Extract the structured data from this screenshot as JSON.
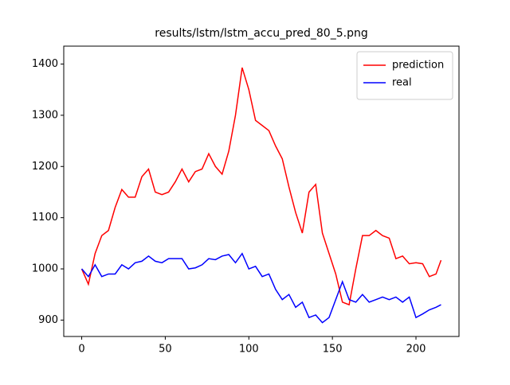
{
  "chart_data": {
    "type": "line",
    "title": "results/lstm/lstm_accu_pred_80_5.png",
    "x": [
      0,
      4,
      8,
      12,
      16,
      20,
      24,
      28,
      32,
      36,
      40,
      44,
      48,
      52,
      56,
      60,
      64,
      68,
      72,
      76,
      80,
      84,
      88,
      92,
      96,
      100,
      104,
      108,
      112,
      116,
      120,
      124,
      128,
      132,
      136,
      140,
      144,
      148,
      152,
      156,
      160,
      164,
      168,
      172,
      176,
      180,
      184,
      188,
      192,
      196,
      200,
      204,
      208,
      212,
      215
    ],
    "series": [
      {
        "name": "prediction",
        "color": "#ff0000",
        "values": [
          1000,
          970,
          1030,
          1065,
          1075,
          1120,
          1155,
          1140,
          1140,
          1180,
          1195,
          1150,
          1145,
          1150,
          1170,
          1195,
          1170,
          1190,
          1195,
          1225,
          1200,
          1185,
          1230,
          1300,
          1393,
          1350,
          1290,
          1280,
          1270,
          1240,
          1215,
          1160,
          1110,
          1070,
          1150,
          1165,
          1070,
          1030,
          990,
          935,
          930,
          1000,
          1065,
          1065,
          1075,
          1065,
          1060,
          1020,
          1025,
          1010,
          1012,
          1010,
          985,
          990,
          1017
        ]
      },
      {
        "name": "real",
        "color": "#0000ff",
        "values": [
          1000,
          985,
          1008,
          985,
          990,
          990,
          1008,
          1000,
          1012,
          1015,
          1025,
          1015,
          1012,
          1020,
          1020,
          1020,
          1000,
          1002,
          1008,
          1020,
          1018,
          1025,
          1028,
          1012,
          1030,
          1000,
          1005,
          985,
          990,
          960,
          940,
          950,
          925,
          935,
          905,
          910,
          895,
          905,
          940,
          975,
          940,
          935,
          950,
          935,
          940,
          945,
          940,
          945,
          935,
          945,
          905,
          912,
          920,
          925,
          930
        ]
      }
    ],
    "xlim": [
      -10.75,
      225.75
    ],
    "ylim": [
      868,
      1435
    ],
    "xticks": [
      0,
      50,
      100,
      150,
      200
    ],
    "yticks": [
      900,
      1000,
      1100,
      1200,
      1300,
      1400
    ],
    "legend": "upper right"
  }
}
